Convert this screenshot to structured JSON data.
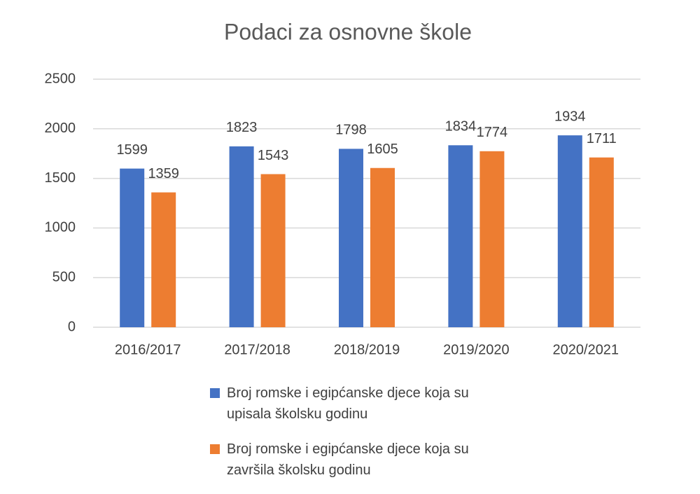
{
  "chart_data": {
    "type": "bar",
    "title": "Podaci za osnovne škole",
    "categories": [
      "2016/2017",
      "2017/2018",
      "2018/2019",
      "2019/2020",
      "2020/2021"
    ],
    "series": [
      {
        "name": "Broj romske i egipćanske djece koja su upisala školsku godinu",
        "color": "#4472c4",
        "values": [
          1599,
          1823,
          1798,
          1834,
          1934
        ]
      },
      {
        "name": "Broj romske i egipćanske djece koja su završila školsku godinu",
        "color": "#ed7d31",
        "values": [
          1359,
          1543,
          1605,
          1774,
          1711
        ]
      }
    ],
    "ylim": [
      0,
      2500
    ],
    "yticks": [
      0,
      500,
      1000,
      1500,
      2000,
      2500
    ],
    "grid": true,
    "legend": "bottom"
  }
}
